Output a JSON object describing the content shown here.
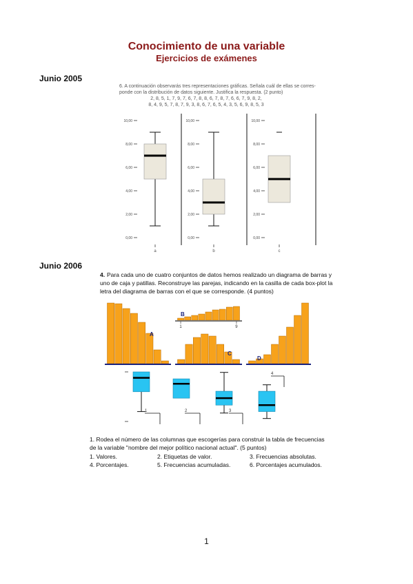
{
  "header": {
    "title": "Conocimiento de una variable",
    "subtitle": "Ejercicios de exámenes"
  },
  "sections": [
    {
      "heading": "Junio 2005",
      "question_lines": [
        "6.   A continuación observarás tres representaciones gráficas. Señala cuál de ellas se corres-",
        "ponde con la distribución de datos siguiente. Justifica la respuesta. (2 punto)"
      ],
      "data_lines": [
        "2, 8, 5, 1, 7, 9, 7, 6, 7, 8, 8, 6, 7, 8, 7, 6, 6, 7, 9, 8, 2,",
        "8, 4, 9, 5, 7, 8, 7, 9, 3, 8, 6, 7, 6, 5, 4, 3, 5, 6, 9, 8, 5, 3"
      ],
      "boxplots": {
        "ylim": [
          0,
          10
        ],
        "yticks": [
          {
            "value": 0,
            "label": "0,00"
          },
          {
            "value": 2,
            "label": "2,00"
          },
          {
            "value": 4,
            "label": "4,00"
          },
          {
            "value": 6,
            "label": "6,00"
          },
          {
            "value": 8,
            "label": "8,00"
          },
          {
            "value": 10,
            "label": "10,00"
          }
        ],
        "plots": [
          {
            "label": "a",
            "min": 1,
            "q1": 5,
            "median": 7,
            "q3": 8,
            "max": 9
          },
          {
            "label": "b",
            "min": 1,
            "q1": 2,
            "median": 3,
            "q3": 5,
            "max": 9
          },
          {
            "label": "c",
            "min": 3,
            "q1": 3,
            "median": 5,
            "q3": 7,
            "max": 7,
            "outliers": [
              9
            ]
          }
        ]
      }
    },
    {
      "heading": "Junio 2006",
      "question_lines": [
        "Para cada uno de cuatro conjuntos de datos hemos realizado un diagrama de barras y",
        "uno de caja y patillas. Reconstruye las parejas, indicando en la casilla de cada box-plot la",
        "letra del diagrama de barras con el que se corresponde.  (4 puntos)"
      ],
      "question_number": "4.",
      "bar_charts": [
        {
          "label": "A",
          "values": [
            88,
            87,
            80,
            73,
            60,
            44,
            20,
            4
          ]
        },
        {
          "label": "B",
          "values": [
            3,
            5,
            7,
            9,
            12,
            15,
            16,
            19,
            20
          ],
          "axis_labels": [
            "1",
            "9"
          ]
        },
        {
          "label": "C",
          "values": [
            6,
            28,
            38,
            43,
            40,
            28,
            17,
            6
          ]
        },
        {
          "label": "D",
          "values": [
            4,
            7,
            13,
            28,
            40,
            53,
            70,
            88
          ]
        }
      ],
      "boxplots": {
        "ylim": [
          0,
          10
        ],
        "plots": [
          {
            "answer": "1",
            "min": 2,
            "q1": 6,
            "median": 8.8,
            "q3": 10,
            "max": 10
          },
          {
            "answer": "2",
            "min": 4.7,
            "q1": 4.7,
            "median": 7.6,
            "q3": 8.6,
            "max": 8.6
          },
          {
            "answer": "3",
            "min": 1.7,
            "q1": 3.3,
            "median": 4.7,
            "q3": 6.1,
            "max": 9.9
          },
          {
            "answer": "4",
            "min": 0.6,
            "q1": 2,
            "median": 3.3,
            "q3": 6.1,
            "max": 7.4
          }
        ]
      },
      "question2": {
        "lines": [
          "1. Rodea el número de las columnas que escogerías para construir la tabla de frecuencias",
          "de la variable \"nombre del mejor político nacional actual\".  (5 puntos)"
        ],
        "options": [
          "1. Valores.",
          "2. Etiquetas de valor.",
          "3. Frecuencias absolutas.",
          "4. Porcentajes.",
          "5. Frecuencias acumuladas.",
          "6. Porcentajes acumulados."
        ]
      }
    }
  ],
  "page_number": "1"
}
